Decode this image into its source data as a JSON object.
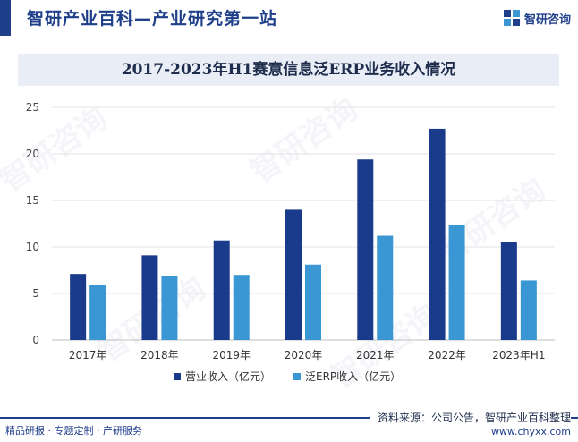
{
  "header": {
    "site_title": "智研产业百科—产业研究第一站",
    "brand_name": "智研咨询",
    "logo_icon": "zhiyan-logo-icon"
  },
  "watermark_text": "智研咨询",
  "colors": {
    "primary": "#1f3f8a",
    "series_revenue": "#1a3a8c",
    "series_erp": "#3a97d4",
    "title_band": "#e8edf6"
  },
  "chart_data": {
    "type": "bar",
    "title": "2017-2023年H1赛意信息泛ERP业务收入情况",
    "categories": [
      "2017年",
      "2018年",
      "2019年",
      "2020年",
      "2021年",
      "2022年",
      "2023年H1"
    ],
    "series": [
      {
        "name": "营业收入（亿元）",
        "values": [
          7.1,
          9.1,
          10.7,
          14.0,
          19.4,
          22.7,
          10.5
        ]
      },
      {
        "name": "泛ERP收入（亿元）",
        "values": [
          5.9,
          6.9,
          7.0,
          8.1,
          11.2,
          12.4,
          6.4
        ]
      }
    ],
    "ylim": [
      0,
      25
    ],
    "yticks": [
      0,
      5,
      10,
      15,
      20,
      25
    ],
    "grid": true,
    "legend_position": "bottom-center",
    "xlabel": "",
    "ylabel": ""
  },
  "footer": {
    "left_text": "精品研报 · 专题定制 · 产研服务",
    "source": "资料来源：公司公告，智研产业百科整理",
    "url": "www.chyxx.com"
  }
}
